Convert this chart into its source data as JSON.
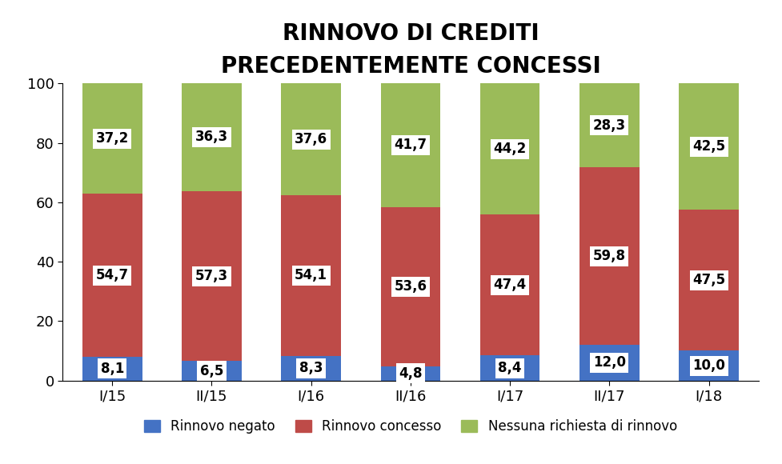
{
  "categories": [
    "I/15",
    "II/15",
    "I/16",
    "II/16",
    "I/17",
    "II/17",
    "I/18"
  ],
  "rinnovo_negato": [
    8.1,
    6.5,
    8.3,
    4.8,
    8.4,
    12.0,
    10.0
  ],
  "rinnovo_concesso": [
    54.7,
    57.3,
    54.1,
    53.6,
    47.4,
    59.8,
    47.5
  ],
  "nessuna_richiesta": [
    37.2,
    36.3,
    37.6,
    41.7,
    44.2,
    28.3,
    42.5
  ],
  "color_negato": "#4472C4",
  "color_concesso": "#BE4B48",
  "color_nessuna": "#9BBB59",
  "title_line1": "RINNOVO DI CREDITI",
  "title_line2": "PRECEDENTEMENTE CONCESSI",
  "ylim": [
    0,
    100
  ],
  "legend_labels": [
    "Rinnovo negato",
    "Rinnovo concesso",
    "Nessuna richiesta di rinnovo"
  ],
  "title_fontsize": 20,
  "label_fontsize": 12,
  "tick_fontsize": 13,
  "legend_fontsize": 12,
  "bar_width": 0.6
}
